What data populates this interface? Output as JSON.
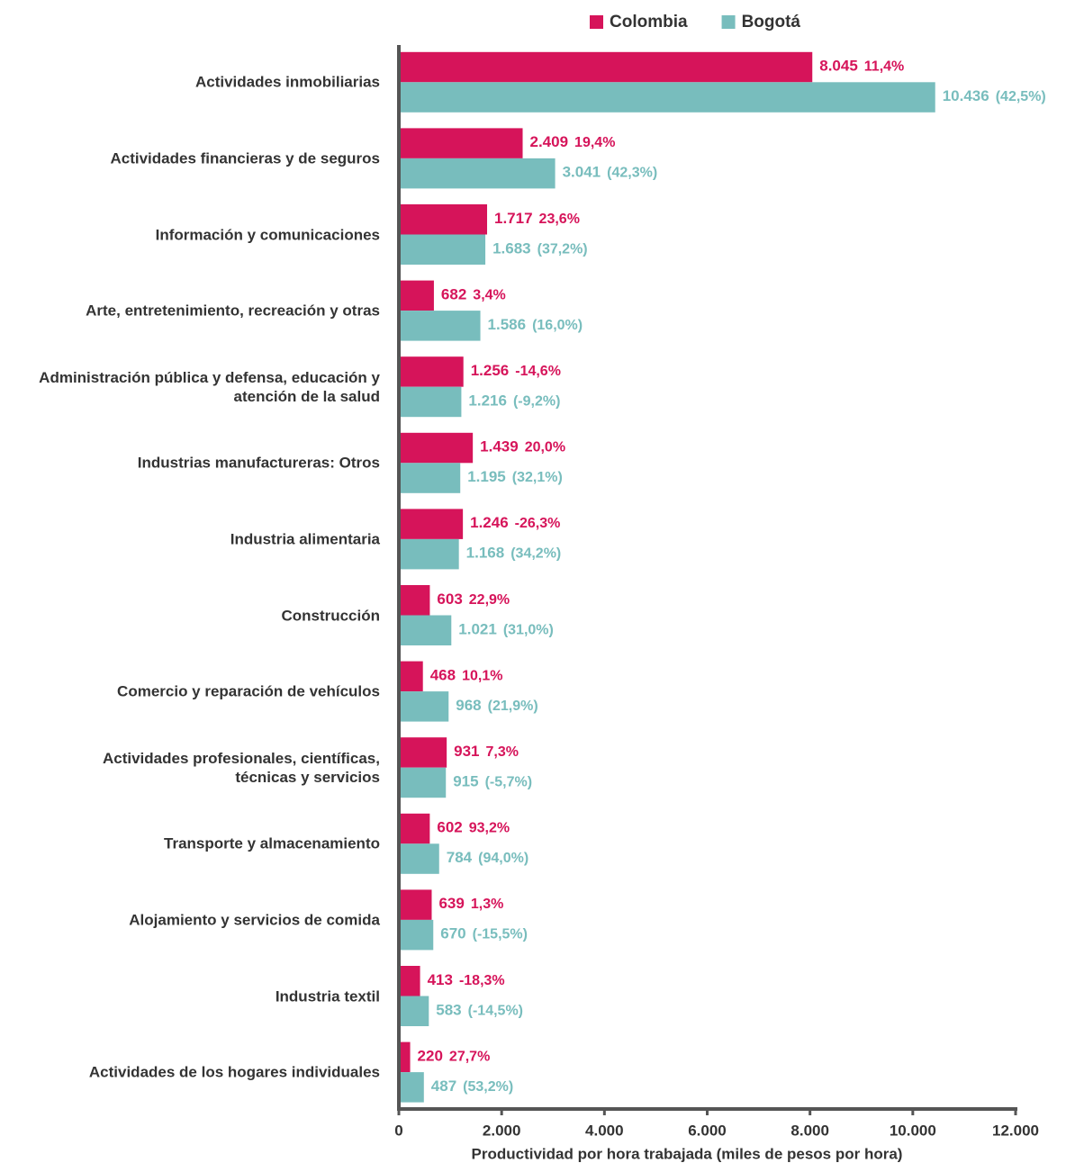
{
  "chart_data": {
    "type": "bar",
    "orientation": "horizontal",
    "categories": [
      "Actividades inmobiliarias",
      "Actividades financieras y de seguros",
      "Información y comunicaciones",
      "Arte, entretenimiento, recreación y otras",
      "Administración pública y defensa, educación y atención de la salud",
      "Industrias manufactureras: Otros",
      "Industria alimentaria",
      "Construcción",
      "Comercio y reparación de vehículos",
      "Actividades profesionales, científicas, técnicas y servicios",
      "Transporte y almacenamiento",
      "Alojamiento y servicios de comida",
      "Industria textil",
      "Actividades de los hogares individuales"
    ],
    "series": [
      {
        "name": "Colombia",
        "color": "#d6145a",
        "values": [
          8045,
          2409,
          1717,
          682,
          1256,
          1439,
          1246,
          603,
          468,
          931,
          602,
          639,
          413,
          220
        ],
        "value_labels": [
          "8.045",
          "2.409",
          "1.717",
          "682",
          "1.256",
          "1.439",
          "1.246",
          "603",
          "468",
          "931",
          "602",
          "639",
          "413",
          "220"
        ],
        "change_labels": [
          "11,4%",
          "19,4%",
          "23,6%",
          "3,4%",
          "-14,6%",
          "20,0%",
          "-26,3%",
          "22,9%",
          "10,1%",
          "7,3%",
          "93,2%",
          "1,3%",
          "-18,3%",
          "27,7%"
        ]
      },
      {
        "name": "Bogotá",
        "color": "#78bdbd",
        "values": [
          10436,
          3041,
          1683,
          1586,
          1216,
          1195,
          1168,
          1021,
          968,
          915,
          784,
          670,
          583,
          487
        ],
        "value_labels": [
          "10.436",
          "3.041",
          "1.683",
          "1.586",
          "1.216",
          "1.195",
          "1.168",
          "1.021",
          "968",
          "915",
          "784",
          "670",
          "583",
          "487"
        ],
        "change_labels": [
          "(42,5%)",
          "(42,3%)",
          "(37,2%)",
          "(16,0%)",
          "(-9,2%)",
          "(32,1%)",
          "(34,2%)",
          "(31,0%)",
          "(21,9%)",
          "(-5,7%)",
          "(94,0%)",
          "(-15,5%)",
          "(-14,5%)",
          "(53,2%)"
        ]
      }
    ],
    "xlabel": "Productividad por hora trabajada (miles de pesos por hora)",
    "xlim": [
      0,
      12000
    ],
    "xticks": [
      0,
      {
        "value": 2000,
        "label": "2.000"
      },
      {
        "value": 4000,
        "label": "4.000"
      },
      {
        "value": 6000,
        "label": "6.000"
      },
      {
        "value": 8000,
        "label": "8.000"
      },
      {
        "value": 10000,
        "label": "10.000"
      },
      {
        "value": 12000,
        "label": "12.000"
      }
    ],
    "legend": "top"
  }
}
